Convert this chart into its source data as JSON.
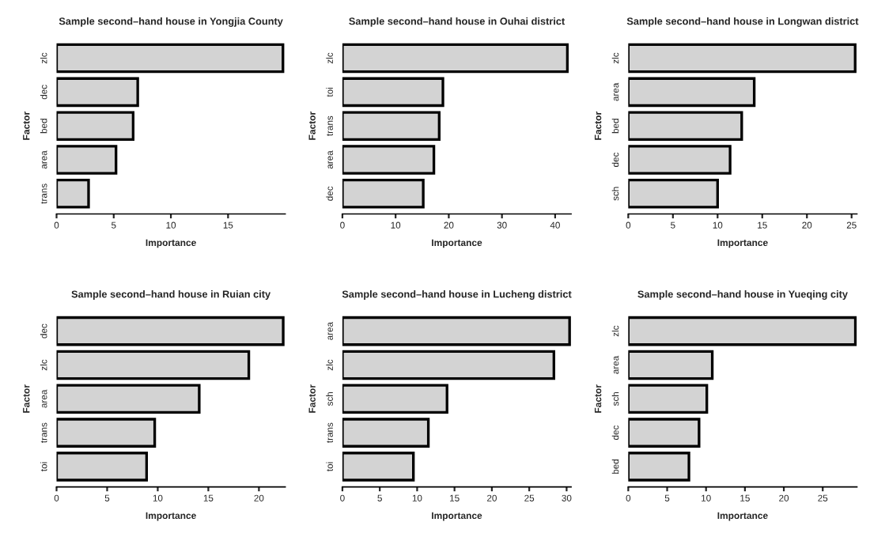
{
  "chart_data": [
    {
      "type": "bar",
      "orientation": "horizontal",
      "title": "Sample second–hand house in Yongjia County",
      "xlabel": "Importance",
      "ylabel": "Factor",
      "categories": [
        "zlc",
        "dec",
        "bed",
        "area",
        "trans"
      ],
      "values": [
        19.8,
        7.1,
        6.7,
        5.2,
        2.8
      ],
      "color": "#d3d3d3",
      "xlim": [
        0,
        20
      ],
      "xticks": [
        0,
        5,
        10,
        15
      ],
      "grid": false
    },
    {
      "type": "bar",
      "orientation": "horizontal",
      "title": "Sample second–hand house in Ouhai district",
      "xlabel": "Importance",
      "ylabel": "Factor",
      "categories": [
        "zlc",
        "toi",
        "trans",
        "area",
        "dec"
      ],
      "values": [
        42.3,
        18.9,
        18.2,
        17.2,
        15.2
      ],
      "color": "#d3d3d3",
      "xlim": [
        0,
        43
      ],
      "xticks": [
        0,
        10,
        20,
        30,
        40
      ],
      "grid": false
    },
    {
      "type": "bar",
      "orientation": "horizontal",
      "title": "Sample second–hand house in Longwan district",
      "xlabel": "Importance",
      "ylabel": "Factor",
      "categories": [
        "zlc",
        "area",
        "bed",
        "dec",
        "sch"
      ],
      "values": [
        25.4,
        14.1,
        12.7,
        11.4,
        10.0
      ],
      "color": "#d3d3d3",
      "xlim": [
        0,
        25.6
      ],
      "xticks": [
        0,
        5,
        10,
        15,
        20,
        25
      ],
      "grid": false
    },
    {
      "type": "bar",
      "orientation": "horizontal",
      "title": "Sample second–hand house in Ruian city",
      "xlabel": "Importance",
      "ylabel": "Factor",
      "categories": [
        "dec",
        "zlc",
        "area",
        "trans",
        "toi"
      ],
      "values": [
        22.4,
        19.0,
        14.1,
        9.7,
        8.9
      ],
      "color": "#d3d3d3",
      "xlim": [
        0,
        22.6
      ],
      "xticks": [
        0,
        5,
        10,
        15,
        20
      ],
      "grid": false
    },
    {
      "type": "bar",
      "orientation": "horizontal",
      "title": "Sample second–hand house in Lucheng district",
      "xlabel": "Importance",
      "ylabel": "Factor",
      "categories": [
        "area",
        "zlc",
        "sch",
        "trans",
        "toi"
      ],
      "values": [
        30.4,
        28.3,
        14.0,
        11.5,
        9.5
      ],
      "color": "#d3d3d3",
      "xlim": [
        0,
        30.6
      ],
      "xticks": [
        0,
        5,
        10,
        15,
        20,
        25,
        30
      ],
      "grid": false
    },
    {
      "type": "bar",
      "orientation": "horizontal",
      "title": "Sample second–hand house in Yueqing city",
      "xlabel": "Importance",
      "ylabel": "Factor",
      "categories": [
        "zlc",
        "area",
        "sch",
        "dec",
        "bed"
      ],
      "values": [
        29.2,
        10.8,
        10.1,
        9.1,
        7.8
      ],
      "color": "#d3d3d3",
      "xlim": [
        0,
        29.4
      ],
      "xticks": [
        0,
        5,
        10,
        15,
        20,
        25
      ],
      "grid": false
    }
  ]
}
